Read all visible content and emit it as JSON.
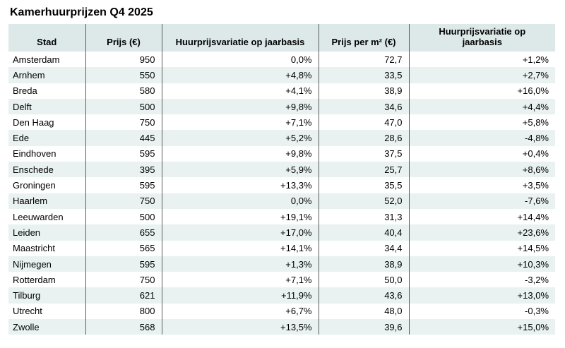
{
  "title": "Kamerhuurprijzen Q4 2025",
  "colors": {
    "header_bg": "#dce9e8",
    "stripe_bg": "#e9f2f1",
    "line": "#5a5a5a"
  },
  "chart_data": {
    "type": "table",
    "title": "Kamerhuurprijzen Q4 2025",
    "columns": [
      {
        "id": "stad",
        "label": "Stad"
      },
      {
        "id": "prijs",
        "label": "Prijs (€)"
      },
      {
        "id": "variatie-jaar",
        "label": "Huurprijsvariatie op jaarbasis"
      },
      {
        "id": "prijs-m2",
        "label": "Prijs per m² (€)"
      },
      {
        "id": "variatie-jaar-m2",
        "label": "Huurprijsvariatie op jaarbasis"
      }
    ],
    "rows": [
      [
        "Amsterdam",
        "950",
        "0,0%",
        "72,7",
        "+1,2%"
      ],
      [
        "Arnhem",
        "550",
        "+4,8%",
        "33,5",
        "+2,7%"
      ],
      [
        "Breda",
        "580",
        "+4,1%",
        "38,9",
        "+16,0%"
      ],
      [
        "Delft",
        "500",
        "+9,8%",
        "34,6",
        "+4,4%"
      ],
      [
        "Den Haag",
        "750",
        "+7,1%",
        "47,0",
        "+5,8%"
      ],
      [
        "Ede",
        "445",
        "+5,2%",
        "28,6",
        "-4,8%"
      ],
      [
        "Eindhoven",
        "595",
        "+9,8%",
        "37,5",
        "+0,4%"
      ],
      [
        "Enschede",
        "395",
        "+5,9%",
        "25,7",
        "+8,6%"
      ],
      [
        "Groningen",
        "595",
        "+13,3%",
        "35,5",
        "+3,5%"
      ],
      [
        "Haarlem",
        "750",
        "0,0%",
        "52,0",
        "-7,6%"
      ],
      [
        "Leeuwarden",
        "500",
        "+19,1%",
        "31,3",
        "+14,4%"
      ],
      [
        "Leiden",
        "655",
        "+17,0%",
        "40,4",
        "+23,6%"
      ],
      [
        "Maastricht",
        "565",
        "+14,1%",
        "34,4",
        "+14,5%"
      ],
      [
        "Nijmegen",
        "595",
        "+1,3%",
        "38,9",
        "+10,3%"
      ],
      [
        "Rotterdam",
        "750",
        "+7,1%",
        "50,0",
        "-3,2%"
      ],
      [
        "Tilburg",
        "621",
        "+11,9%",
        "43,6",
        "+13,0%"
      ],
      [
        "Utrecht",
        "800",
        "+6,7%",
        "48,0",
        "-0,3%"
      ],
      [
        "Zwolle",
        "568",
        "+13,5%",
        "39,6",
        "+15,0%"
      ]
    ]
  }
}
